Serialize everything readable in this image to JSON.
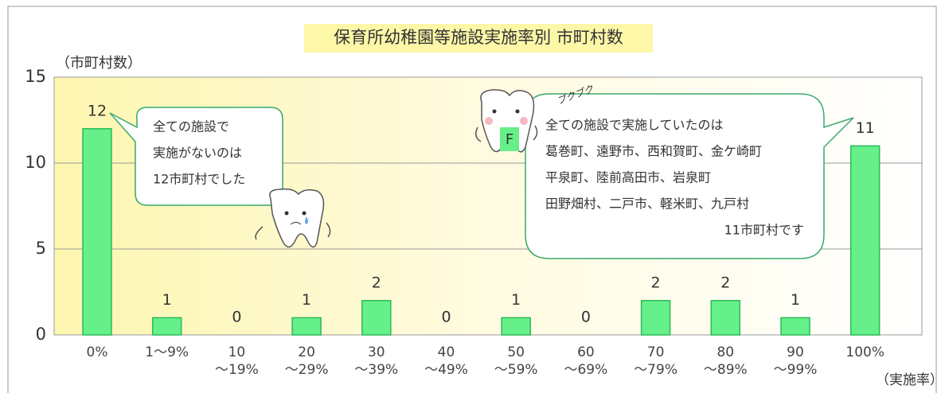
{
  "chart_data": {
    "type": "bar",
    "title": "保育所幼稚園等施設実施率別 市町村数",
    "y_label": "（市町村数）",
    "x_label": "（実施率）",
    "categories": [
      "0%",
      "1～9%",
      "10\n～19%",
      "20\n～29%",
      "30\n～39%",
      "40\n～49%",
      "50\n～59%",
      "60\n～69%",
      "70\n～79%",
      "80\n～89%",
      "90\n～99%",
      "100%"
    ],
    "values": [
      12,
      1,
      0,
      1,
      2,
      0,
      1,
      0,
      2,
      2,
      1,
      11
    ],
    "color": "#66f08a",
    "grid": true,
    "ylim": [
      0,
      15
    ],
    "yticks": [
      0,
      5,
      10,
      15
    ],
    "callouts": [
      {
        "lines": [
          "全ての施設で",
          "実施がないのは",
          "12市町村でした"
        ]
      },
      {
        "lines": [
          "全ての施設で実施していたのは",
          "葛巻町、遠野市、西和賀町、金ケ崎町",
          "平泉町、陸前高田市、岩泉町",
          "田野畑村、二戸市、軽米町、九戸村",
          "11市町村です"
        ]
      }
    ],
    "character_texts": [
      "ブクブク",
      "F"
    ]
  }
}
